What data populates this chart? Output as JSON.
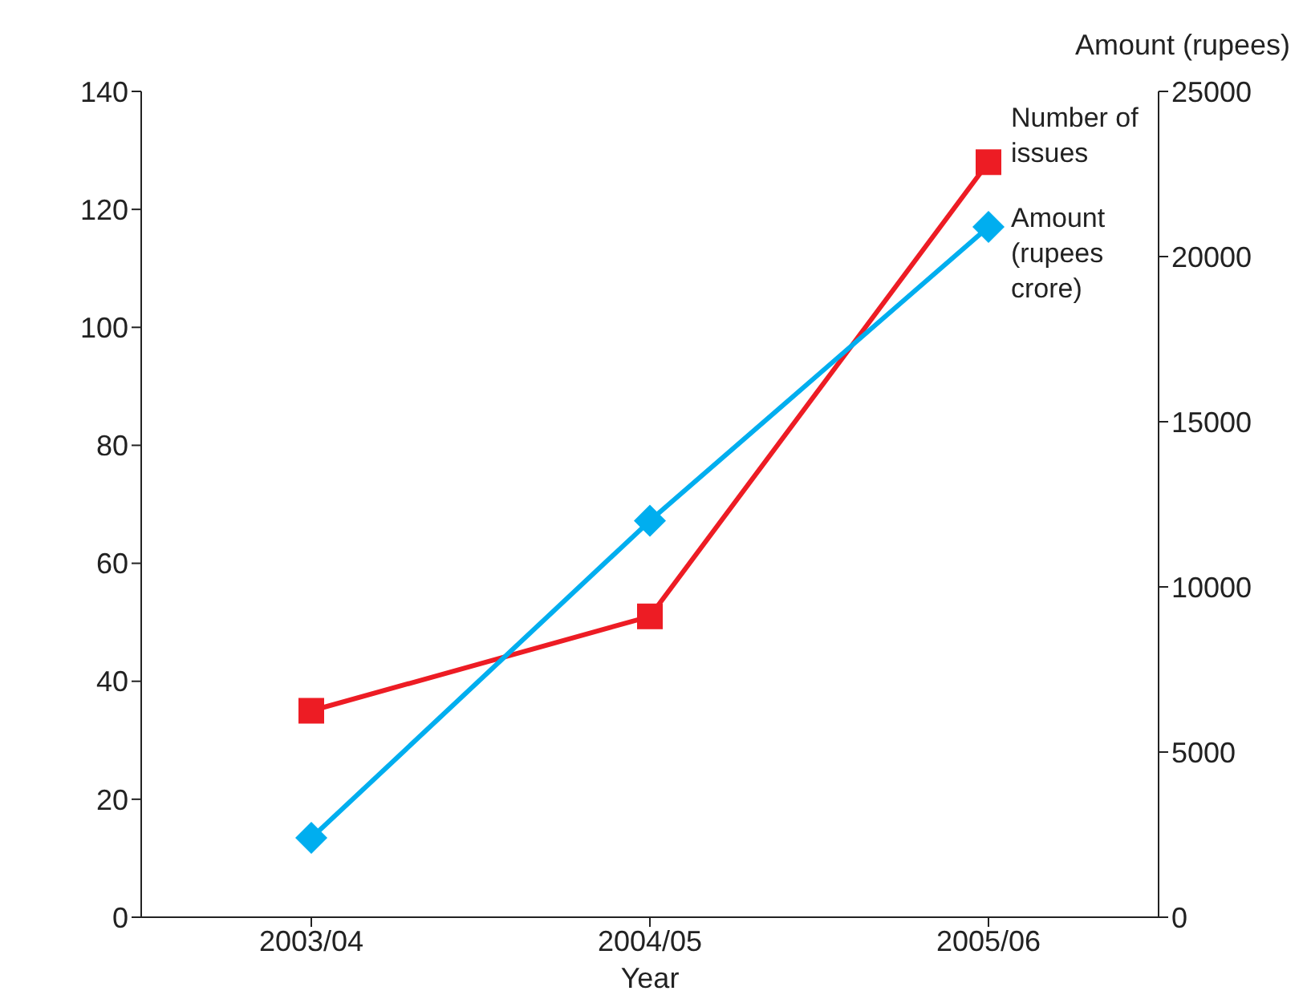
{
  "chart_data": {
    "type": "line",
    "categories": [
      "2003/04",
      "2004/05",
      "2005/06"
    ],
    "xlabel": "Year",
    "y2label": "Amount (rupees)",
    "series": [
      {
        "name": "Number of issues",
        "color": "#ed1c24",
        "values": [
          35,
          51,
          128
        ],
        "marker": "square"
      },
      {
        "name": "Amount (rupees crore)",
        "color": "#00aeef",
        "values": [
          2400,
          12000,
          20900
        ],
        "marker": "diamond",
        "axis": "y2"
      }
    ],
    "ylim": [
      0,
      140
    ],
    "yticks": [
      0,
      20,
      40,
      60,
      80,
      100,
      120,
      140
    ],
    "y2lim": [
      0,
      25000
    ],
    "y2ticks": [
      0,
      5000,
      10000,
      15000,
      20000,
      25000
    ],
    "grid": false,
    "line_style": "solid"
  }
}
